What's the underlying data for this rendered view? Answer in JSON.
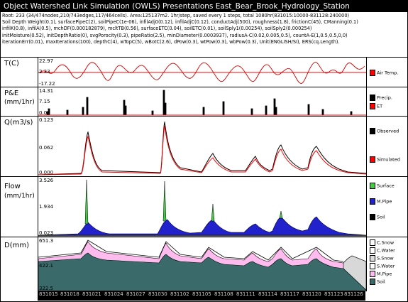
{
  "window": {
    "title": "Object Watershed Link Simulation (OWLS) Presentations    East_Bear_Brook_Hydrology_Station"
  },
  "info_lines": [
    "Root: 233 (34/474nodes,210/743edges,117/464cells). Area:125137m2. 1hr/step, saved every 1 steps, total 1080hr(831015:10000-831128:240000)",
    "Soil Depth Weight(0.1), surfacePipeC(2), soilPipeC(1e-06), infilAdj0(0.12), infilAdjC(0.12), conductAdj(500), roughness(1.8), frictionC(45), CManning(0.1)",
    "infilK(0.8), infilA(0.5), mchDF(0.000182879), mcltTB(0.56), surfaceETC(0.04), soilETC(0.01), soilSply1(0.00254), soilSply2(0.000254)",
    "initMoisture(0.52), initDepthRatio(0), svgPorocity(0.3), pipeRatio(2.5), minDiameter(0.0003937), radiusA-C(0.02,0.005,0.5), countA-E(1,0.5,0.5,0,0)",
    "iterationErr(0.01), maxIterations(100), depthC(4), wTopC(5), wBotC(2.6), dPow(0.3), wtPow(0.3), wbPow(0.3), Unit(ENGLISH/SI), ERS(cq.Length)."
  ],
  "panels": {
    "temp": {
      "label": "T(C)",
      "ticks": [
        "22.97",
        "2.33",
        "-17.22"
      ],
      "legend": [
        {
          "name": "Air Temp.",
          "color": "#ff0000"
        }
      ]
    },
    "pe": {
      "label": "P&E",
      "unit": "(mm/1hr)",
      "ticks": [
        "14.31",
        "7.15",
        "0.00"
      ],
      "legend": [
        {
          "name": "Precip.",
          "color": "#000000"
        },
        {
          "name": "ET",
          "color": "#ff0000"
        }
      ]
    },
    "q": {
      "label": "Q(m3/s)",
      "ticks": [
        "0.123",
        "0.062",
        "0.000"
      ],
      "legend": [
        {
          "name": "Observed",
          "color": "#000000"
        },
        {
          "name": "Simulated",
          "color": "#ff0000"
        }
      ]
    },
    "flow": {
      "label": "Flow",
      "unit": "(mm/1hr)",
      "ticks": [
        "3.526",
        "1.934",
        "0.023"
      ],
      "legend": [
        {
          "name": "Surface",
          "color": "#44cc44"
        },
        {
          "name": "M.Pipe",
          "color": "#2222cc"
        },
        {
          "name": "Soil",
          "color": "#000000"
        }
      ]
    },
    "d": {
      "label": "D(mm)",
      "ticks": [
        "651.3",
        "422.1",
        "322.5"
      ],
      "legend": [
        {
          "name": "C.Snow",
          "color": "#ffffff"
        },
        {
          "name": "C.Water",
          "color": "#ffffff"
        },
        {
          "name": "S.Snow",
          "color": "#dddddd"
        },
        {
          "name": "S.Water",
          "color": "#ffffff"
        },
        {
          "name": "M.Pipe",
          "color": "#ffbbee"
        },
        {
          "name": "Soil",
          "color": "#3a6a6a"
        }
      ]
    }
  },
  "xaxis": {
    "ticks": [
      "831015",
      "831018",
      "831021",
      "831024",
      "831027",
      "831030",
      "831102",
      "831105",
      "831108",
      "831111",
      "831114",
      "831117",
      "831120",
      "831123",
      "831126"
    ]
  }
}
